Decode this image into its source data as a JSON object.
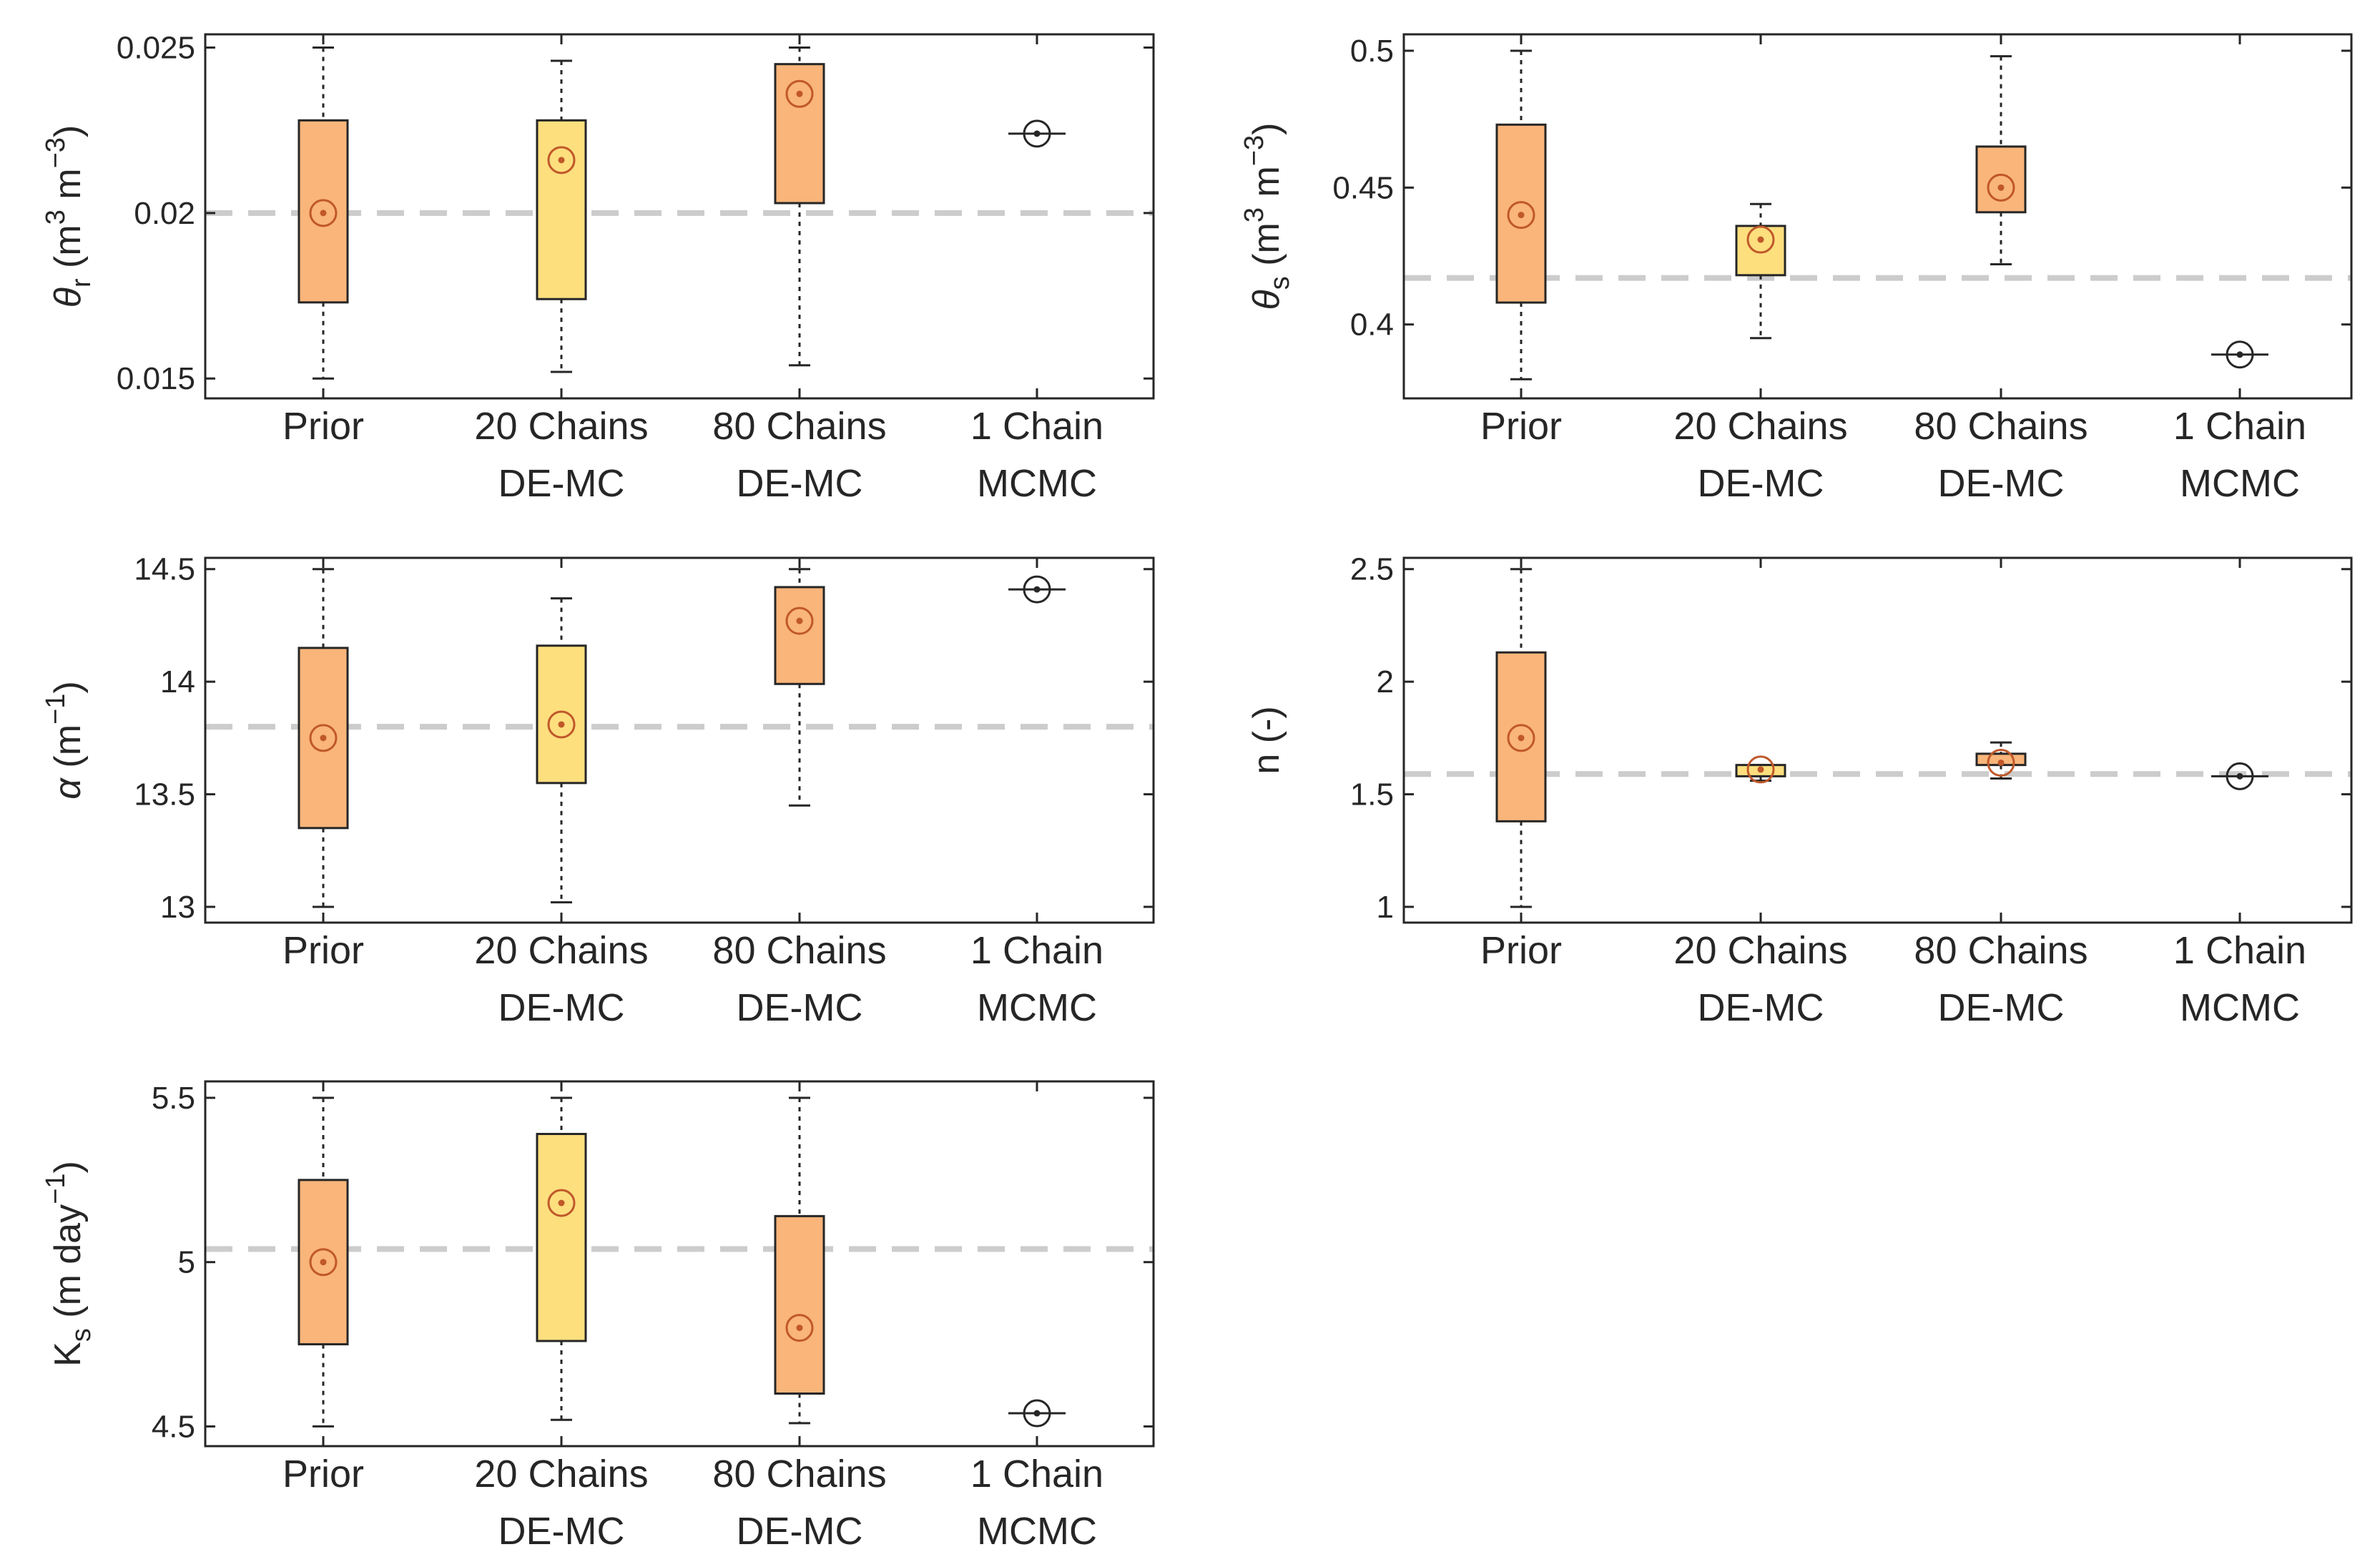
{
  "chart_data": [
    {
      "type": "box",
      "ylabel": {
        "symbol": "θ",
        "sub": "r",
        "units": "(m",
        "sup1": "3",
        "mid": " m",
        "sup2": "−3",
        "end": ")"
      },
      "categories": [
        [
          "Prior",
          ""
        ],
        [
          "20 Chains",
          "DE-MC"
        ],
        [
          "80 Chains",
          "DE-MC"
        ],
        [
          "1 Chain",
          "MCMC"
        ]
      ],
      "ylim": [
        0.0144,
        0.0254
      ],
      "yticks": [
        0.015,
        0.02,
        0.025
      ],
      "ytick_labels": [
        "0.015",
        "0.02",
        "0.025"
      ],
      "reference": 0.02,
      "boxes": [
        {
          "color": "#f9b57a",
          "min": 0.015,
          "q1": 0.0173,
          "q3": 0.0228,
          "max": 0.025,
          "center": 0.02
        },
        {
          "color": "#fddf7e",
          "min": 0.0152,
          "q1": 0.0174,
          "q3": 0.0228,
          "max": 0.0246,
          "center": 0.0216
        },
        {
          "color": "#f9b57a",
          "min": 0.0154,
          "q1": 0.0203,
          "q3": 0.0245,
          "max": 0.025,
          "center": 0.0236
        },
        {
          "color": "none",
          "min": 0.0224,
          "q1": 0.0224,
          "q3": 0.0224,
          "max": 0.0224,
          "center": 0.0224
        }
      ]
    },
    {
      "type": "box",
      "ylabel": {
        "symbol": "θ",
        "sub": "s",
        "units": "(m",
        "sup1": "3",
        "mid": " m",
        "sup2": "−3",
        "end": ")"
      },
      "categories": [
        [
          "Prior",
          ""
        ],
        [
          "20 Chains",
          "DE-MC"
        ],
        [
          "80 Chains",
          "DE-MC"
        ],
        [
          "1 Chain",
          "MCMC"
        ]
      ],
      "ylim": [
        0.373,
        0.506
      ],
      "yticks": [
        0.4,
        0.45,
        0.5
      ],
      "ytick_labels": [
        "0.4",
        "0.45",
        "0.5"
      ],
      "reference": 0.417,
      "boxes": [
        {
          "color": "#f9b57a",
          "min": 0.38,
          "q1": 0.408,
          "q3": 0.473,
          "max": 0.5,
          "center": 0.44
        },
        {
          "color": "#fddf7e",
          "min": 0.395,
          "q1": 0.418,
          "q3": 0.436,
          "max": 0.444,
          "center": 0.431
        },
        {
          "color": "#f9b57a",
          "min": 0.422,
          "q1": 0.441,
          "q3": 0.465,
          "max": 0.498,
          "center": 0.45
        },
        {
          "color": "none",
          "min": 0.389,
          "q1": 0.389,
          "q3": 0.389,
          "max": 0.389,
          "center": 0.389
        }
      ]
    },
    {
      "type": "box",
      "ylabel": {
        "symbol": "α",
        "sub": "",
        "units": "(m",
        "sup1": "",
        "mid": "",
        "sup2": "−1",
        "end": ")"
      },
      "categories": [
        [
          "Prior",
          ""
        ],
        [
          "20 Chains",
          "DE-MC"
        ],
        [
          "80 Chains",
          "DE-MC"
        ],
        [
          "1 Chain",
          "MCMC"
        ]
      ],
      "ylim": [
        12.93,
        14.55
      ],
      "yticks": [
        13,
        13.5,
        14,
        14.5
      ],
      "ytick_labels": [
        "13",
        "13.5",
        "14",
        "14.5"
      ],
      "reference": 13.8,
      "boxes": [
        {
          "color": "#f9b57a",
          "min": 13.0,
          "q1": 13.35,
          "q3": 14.15,
          "max": 14.5,
          "center": 13.75
        },
        {
          "color": "#fddf7e",
          "min": 13.02,
          "q1": 13.55,
          "q3": 14.16,
          "max": 14.37,
          "center": 13.81
        },
        {
          "color": "#f9b57a",
          "min": 13.45,
          "q1": 13.99,
          "q3": 14.42,
          "max": 14.5,
          "center": 14.27
        },
        {
          "color": "none",
          "min": 14.41,
          "q1": 14.41,
          "q3": 14.41,
          "max": 14.41,
          "center": 14.41
        }
      ]
    },
    {
      "type": "box",
      "ylabel": {
        "symbol": "n",
        "sub": "",
        "units": "(-)",
        "sup1": "",
        "mid": "",
        "sup2": "",
        "end": ""
      },
      "categories": [
        [
          "Prior",
          ""
        ],
        [
          "20 Chains",
          "DE-MC"
        ],
        [
          "80 Chains",
          "DE-MC"
        ],
        [
          "1 Chain",
          "MCMC"
        ]
      ],
      "ylim": [
        0.93,
        2.55
      ],
      "yticks": [
        1,
        1.5,
        2,
        2.5
      ],
      "ytick_labels": [
        "1",
        "1.5",
        "2",
        "2.5"
      ],
      "reference": 1.59,
      "boxes": [
        {
          "color": "#f9b57a",
          "min": 1.0,
          "q1": 1.38,
          "q3": 2.13,
          "max": 2.5,
          "center": 1.75
        },
        {
          "color": "#fddf7e",
          "min": 1.56,
          "q1": 1.58,
          "q3": 1.63,
          "max": 1.63,
          "center": 1.61
        },
        {
          "color": "#f9b57a",
          "min": 1.57,
          "q1": 1.63,
          "q3": 1.68,
          "max": 1.73,
          "center": 1.64
        },
        {
          "color": "none",
          "min": 1.58,
          "q1": 1.58,
          "q3": 1.58,
          "max": 1.58,
          "center": 1.58
        }
      ]
    },
    {
      "type": "box",
      "ylabel": {
        "symbol": "K",
        "sub": "s",
        "units": "(m day",
        "sup1": "",
        "mid": "",
        "sup2": "−1",
        "end": ")"
      },
      "categories": [
        [
          "Prior",
          ""
        ],
        [
          "20 Chains",
          "DE-MC"
        ],
        [
          "80 Chains",
          "DE-MC"
        ],
        [
          "1 Chain",
          "MCMC"
        ]
      ],
      "ylim": [
        4.44,
        5.55
      ],
      "yticks": [
        4.5,
        5,
        5.5
      ],
      "ytick_labels": [
        "4.5",
        "5",
        "5.5"
      ],
      "reference": 5.04,
      "boxes": [
        {
          "color": "#f9b57a",
          "min": 4.5,
          "q1": 4.75,
          "q3": 5.25,
          "max": 5.5,
          "center": 5.0
        },
        {
          "color": "#fddf7e",
          "min": 4.52,
          "q1": 4.76,
          "q3": 5.39,
          "max": 5.5,
          "center": 5.18
        },
        {
          "color": "#f9b57a",
          "min": 4.51,
          "q1": 4.6,
          "q3": 5.14,
          "max": 5.5,
          "center": 4.8
        },
        {
          "color": "none",
          "min": 4.54,
          "q1": 4.54,
          "q3": 4.54,
          "max": 4.54,
          "center": 4.54
        }
      ]
    }
  ],
  "colors": {
    "prior_and_80": "#f9b57a",
    "chains20": "#fddf7e",
    "marker": "#c0582a",
    "reference_line": "#cccccc"
  }
}
